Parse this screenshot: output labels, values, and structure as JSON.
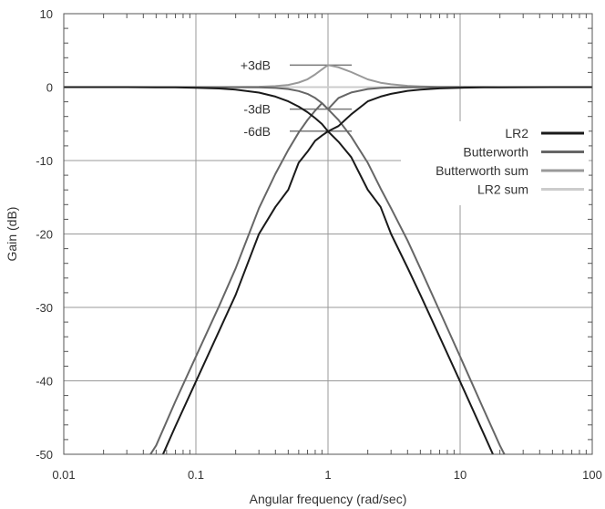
{
  "chart_data": {
    "type": "line",
    "title": "",
    "xlabel": "Angular frequency (rad/sec)",
    "ylabel": "Gain (dB)",
    "xscale": "log",
    "xlim": [
      0.01,
      100
    ],
    "ylim": [
      -50,
      10
    ],
    "grid": true,
    "legend_position": "right",
    "x_ticks": [
      {
        "value": 0.01,
        "label": "0.01"
      },
      {
        "value": 0.1,
        "label": "0.1"
      },
      {
        "value": 1,
        "label": "1"
      },
      {
        "value": 10,
        "label": "10"
      },
      {
        "value": 100,
        "label": "100"
      }
    ],
    "y_ticks": [
      {
        "value": 10,
        "label": "10"
      },
      {
        "value": 0,
        "label": "0"
      },
      {
        "value": -10,
        "label": "-10"
      },
      {
        "value": -20,
        "label": "-20"
      },
      {
        "value": -30,
        "label": "-30"
      },
      {
        "value": -40,
        "label": "-40"
      },
      {
        "value": -50,
        "label": "-50"
      }
    ],
    "x": [
      0.01,
      0.02,
      0.03,
      0.05,
      0.07,
      0.1,
      0.15,
      0.2,
      0.3,
      0.4,
      0.5,
      0.6,
      0.7,
      0.8,
      0.9,
      1,
      1.2,
      1.5,
      2,
      2.5,
      3,
      4,
      5,
      7,
      10,
      15,
      20,
      30,
      50,
      100
    ],
    "series": [
      {
        "name": "LR2",
        "color": "#1a1a1a",
        "lowpass": [
          0,
          0,
          0,
          -0.02,
          -0.04,
          -0.09,
          -0.19,
          -0.34,
          -0.75,
          -1.29,
          -1.94,
          -2.66,
          -3.42,
          -4.22,
          -5.03,
          -6.02,
          -7.44,
          -9.54,
          -13.98,
          -16.31,
          -20.0,
          -24.6,
          -28.3,
          -34.0,
          -40.1,
          -47.1,
          -52.1,
          -59.1,
          -67.9,
          -80.0
        ],
        "highpass": [
          -80.0,
          -67.9,
          -59.1,
          -52.1,
          -46.2,
          -40.1,
          -33.2,
          -28.3,
          -20.0,
          -16.31,
          -13.98,
          -10.3,
          -8.8,
          -7.3,
          -6.6,
          -6.02,
          -5.3,
          -3.7,
          -1.94,
          -1.29,
          -0.92,
          -0.51,
          -0.34,
          -0.17,
          -0.09,
          -0.04,
          -0.02,
          -0.01,
          0,
          0
        ]
      },
      {
        "name": "Butterworth",
        "color": "#666666",
        "lowpass": [
          0,
          0,
          0,
          0,
          0,
          0,
          0,
          -0.01,
          -0.04,
          -0.11,
          -0.26,
          -0.53,
          -0.92,
          -1.48,
          -2.19,
          -3.01,
          -4.47,
          -6.75,
          -10.3,
          -13.8,
          -16.5,
          -20.9,
          -24.7,
          -30.5,
          -36.7,
          -43.8,
          -48.8,
          -55.9,
          -64.8,
          -76.8
        ],
        "highpass": [
          -76.8,
          -64.8,
          -55.9,
          -48.8,
          -42.8,
          -36.7,
          -29.8,
          -24.7,
          -16.5,
          -11.8,
          -8.55,
          -6.19,
          -4.47,
          -3.2,
          -2.19,
          -3.01,
          -1.48,
          -0.73,
          -0.26,
          -0.11,
          -0.05,
          -0.02,
          -0.01,
          0,
          0,
          0,
          0,
          0,
          0,
          0
        ]
      },
      {
        "name": "Butterworth sum",
        "color": "#999999",
        "values": [
          0,
          0,
          0,
          0,
          0,
          0,
          0,
          0.01,
          0.05,
          0.14,
          0.3,
          0.62,
          1.07,
          1.73,
          2.41,
          3.01,
          2.7,
          2.05,
          1.05,
          0.6,
          0.38,
          0.17,
          0.1,
          0.04,
          0.02,
          0.01,
          0,
          0,
          0,
          0
        ]
      },
      {
        "name": "LR2 sum",
        "color": "#cccccc",
        "values": [
          0,
          0,
          0,
          0,
          0,
          0,
          0,
          0,
          0,
          0,
          0,
          0,
          0,
          0,
          0,
          0,
          0,
          0,
          0,
          0,
          0,
          0,
          0,
          0,
          0,
          0,
          0,
          0,
          0,
          0
        ]
      }
    ],
    "annotations": [
      {
        "label": "+3dB",
        "y": 3
      },
      {
        "label": "-3dB",
        "y": -3
      },
      {
        "label": "-6dB",
        "y": -6
      }
    ]
  }
}
